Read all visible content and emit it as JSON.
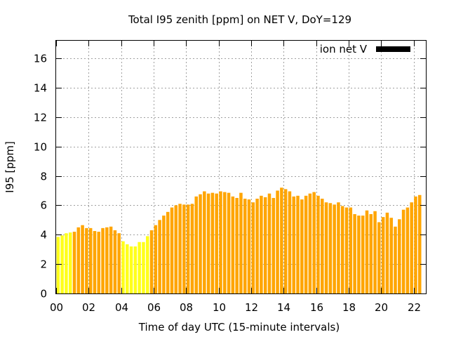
{
  "chart_data": {
    "type": "bar",
    "title": "Total I95 zenith [ppm] on NET V, DoY=129",
    "xlabel": "Time of day UTC (15-minute intervals)",
    "ylabel": "I95 [ppm]",
    "xlim": [
      0,
      22.75
    ],
    "ylim": [
      0,
      17.2
    ],
    "xticks": [
      0,
      2,
      4,
      6,
      8,
      10,
      12,
      14,
      16,
      18,
      20,
      22
    ],
    "xtick_labels": [
      "00",
      "02",
      "04",
      "06",
      "08",
      "10",
      "12",
      "14",
      "16",
      "18",
      "20",
      "22"
    ],
    "yticks": [
      0,
      2,
      4,
      6,
      8,
      10,
      12,
      14,
      16
    ],
    "grid": true,
    "legend_position": "top-right",
    "series": [
      {
        "name": "ion net V",
        "legend_color": "#000000",
        "interval_hours": 0.25,
        "values": [
          3.85,
          3.95,
          4.1,
          4.15,
          4.2,
          4.5,
          4.65,
          4.45,
          4.45,
          4.25,
          4.2,
          4.45,
          4.5,
          4.55,
          4.3,
          4.1,
          3.55,
          3.35,
          3.2,
          3.2,
          3.5,
          3.5,
          3.9,
          4.3,
          4.65,
          5.0,
          5.3,
          5.55,
          5.85,
          6.0,
          6.1,
          6.05,
          6.05,
          6.1,
          6.6,
          6.75,
          6.95,
          6.8,
          6.85,
          6.8,
          6.95,
          6.9,
          6.85,
          6.6,
          6.5,
          6.85,
          6.45,
          6.4,
          6.2,
          6.45,
          6.65,
          6.55,
          6.8,
          6.5,
          7.0,
          7.2,
          7.1,
          6.95,
          6.6,
          6.65,
          6.4,
          6.65,
          6.8,
          6.9,
          6.65,
          6.45,
          6.2,
          6.15,
          6.05,
          6.2,
          5.95,
          5.85,
          5.85,
          5.4,
          5.3,
          5.3,
          5.65,
          5.4,
          5.6,
          4.85,
          5.2,
          5.5,
          5.15,
          4.55,
          5.05,
          5.7,
          5.85,
          6.2,
          6.6,
          6.7
        ]
      }
    ],
    "colors": {
      "low": "#ffff1a",
      "normal": "#ffa500",
      "legend_swatch": "#000000"
    },
    "low_intervals": [
      0,
      1,
      2,
      3,
      16,
      17,
      18,
      19,
      20,
      21,
      22
    ]
  }
}
